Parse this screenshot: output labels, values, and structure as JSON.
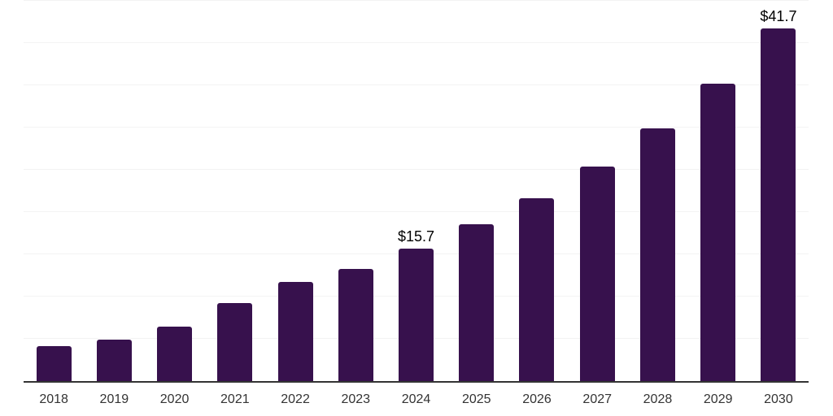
{
  "chart_data": {
    "type": "bar",
    "title": "",
    "xlabel": "",
    "ylabel": "",
    "categories": [
      "2018",
      "2019",
      "2020",
      "2021",
      "2022",
      "2023",
      "2024",
      "2025",
      "2026",
      "2027",
      "2028",
      "2029",
      "2030"
    ],
    "values": [
      4.1,
      4.9,
      6.4,
      9.2,
      11.7,
      13.3,
      15.7,
      18.6,
      21.6,
      25.4,
      29.9,
      35.2,
      41.7
    ],
    "point_labels": [
      "",
      "",
      "",
      "",
      "",
      "",
      "$15.7",
      "",
      "",
      "",
      "",
      "",
      "$41.7"
    ],
    "ylim": [
      0,
      45.1
    ],
    "gridline_values": [
      5,
      10,
      15,
      20,
      25,
      30,
      35,
      40,
      45
    ],
    "grid": "horizontal-only",
    "legend": "none",
    "colors": {
      "bar": "#37114d",
      "axis": "#333333",
      "gridline": "#f3f3f3",
      "tick_label": "#333333",
      "point_label": "#000000",
      "background": "#ffffff"
    }
  }
}
